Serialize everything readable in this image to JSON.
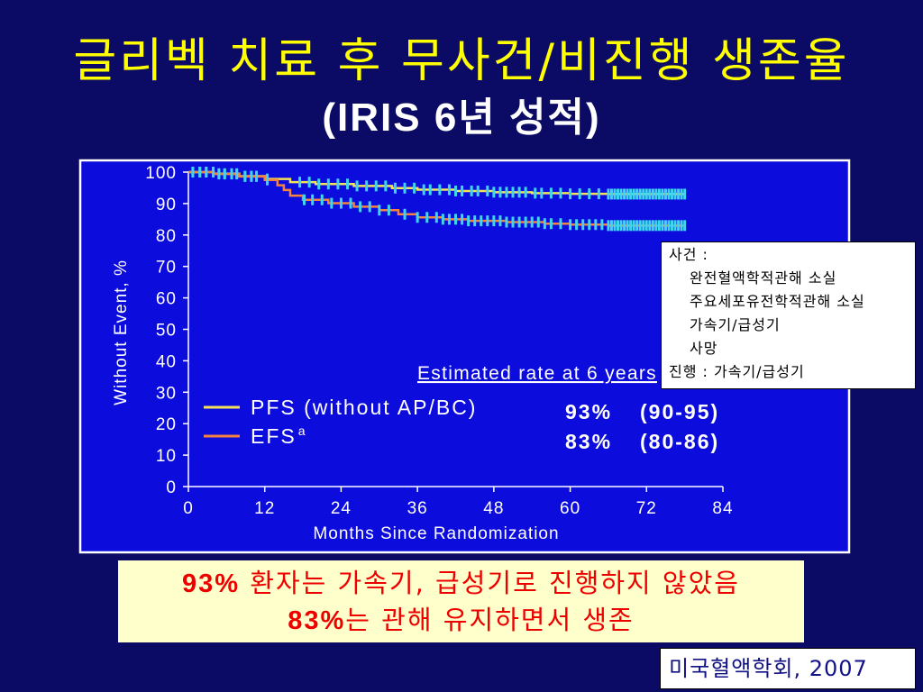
{
  "slide": {
    "title": "글리벡 치료 후 무사건/비진행 생존율",
    "subtitle": "(IRIS 6년 성적)"
  },
  "colors": {
    "background": "#0b0b66",
    "panel": "#0c0cdc",
    "title": "#ffff00",
    "subtitle": "#ffffff",
    "summary_background": "#ffffcc",
    "summary_text": "#ee0000",
    "citation_text": "#121287",
    "censor_mark": "#3fd4f2",
    "axis": "#ffffff"
  },
  "chart_data": {
    "type": "line",
    "step": true,
    "xlabel": "Months Since Randomization",
    "ylabel": "Without Event, %",
    "xlim": [
      0,
      84
    ],
    "ylim": [
      0,
      100
    ],
    "xticks": [
      0,
      12,
      24,
      36,
      48,
      60,
      72,
      84
    ],
    "yticks": [
      0,
      10,
      20,
      30,
      40,
      50,
      60,
      70,
      80,
      90,
      100
    ],
    "grid": false,
    "legend_position": "lower-left",
    "series": [
      {
        "name": "PFS (without AP/BC)",
        "color": "#f3e25a",
        "x": [
          0,
          4,
          8,
          12,
          16,
          20,
          26,
          32,
          36,
          42,
          48,
          54,
          60,
          66,
          78
        ],
        "y": [
          100,
          99.5,
          98.7,
          97.8,
          96.8,
          96.2,
          95.6,
          94.9,
          94.4,
          94.0,
          93.6,
          93.3,
          93.1,
          93.0,
          93.0
        ],
        "censored_x": [
          0.7,
          1.8,
          2.8,
          3.9,
          4.8,
          5.7,
          6.8,
          7.6,
          8.9,
          9.9,
          10.7,
          12.4,
          17.5,
          19,
          20.5,
          22,
          23.5,
          25,
          26.5,
          28,
          29.5,
          31,
          32.5,
          34,
          35.5,
          37,
          38,
          39.5,
          41,
          42,
          43,
          44.5,
          45.5,
          47,
          48,
          49,
          50,
          51,
          52,
          53,
          54.5,
          55.5,
          57,
          58.5,
          60,
          61.5,
          63,
          64.5,
          66,
          66.5,
          67,
          67.5,
          68,
          68.5,
          69,
          69.5,
          70,
          70.5,
          71,
          71.5,
          72,
          72.5,
          73,
          73.5,
          74,
          74.5,
          75,
          75.5,
          76,
          76.5,
          77,
          77.5,
          78
        ]
      },
      {
        "name": "EFS",
        "name_superscript": "a",
        "color": "#f5823f",
        "x": [
          0,
          4,
          8,
          12,
          14,
          15,
          16,
          18,
          22,
          26,
          30,
          33,
          36,
          40,
          44,
          50,
          56,
          60,
          66,
          78
        ],
        "y": [
          100,
          99.4,
          98.6,
          97.5,
          95.8,
          94.3,
          92.5,
          91.2,
          90.1,
          89.0,
          87.9,
          86.6,
          85.6,
          85.0,
          84.5,
          84.1,
          83.6,
          83.3,
          83.0,
          83.0
        ],
        "censored_x": [
          0.7,
          1.8,
          2.8,
          3.9,
          4.8,
          5.7,
          6.8,
          7.6,
          8.9,
          9.9,
          10.7,
          12.4,
          18.2,
          19.5,
          21,
          22.5,
          24,
          25.5,
          27,
          28.5,
          30,
          31.5,
          34,
          36,
          37.5,
          39,
          40,
          41,
          42,
          43,
          44,
          45,
          46,
          47,
          48,
          49,
          50,
          51,
          52,
          53,
          54,
          55,
          56,
          57,
          58.5,
          60,
          61,
          62,
          63,
          64,
          65,
          66,
          66.5,
          67,
          67.5,
          68,
          68.5,
          69,
          69.5,
          70,
          70.5,
          71,
          71.5,
          72,
          72.5,
          73,
          73.5,
          74,
          74.5,
          75,
          75.5,
          76,
          76.5,
          77,
          77.5,
          78
        ]
      }
    ],
    "annotation": {
      "header": "Estimated rate at 6 years",
      "rows": [
        {
          "rate": "93%",
          "ci": "(90-95)"
        },
        {
          "rate": "83%",
          "ci": "(80-86)"
        }
      ]
    }
  },
  "definitions_box": {
    "lines": [
      "사건 :",
      "완전혈액학적관해 소실",
      "주요세포유전학적관해 소실",
      "가속기/급성기",
      "사망",
      "진행 : 가속기/급성기"
    ]
  },
  "summary": {
    "line1": {
      "highlight": "93%",
      "text": " 환자는 가속기, 급성기로 진행하지 않았음"
    },
    "line2": {
      "highlight": "83%",
      "text": "는 관해 유지하면서 생존"
    }
  },
  "citation": "미국혈액학회, 2007"
}
